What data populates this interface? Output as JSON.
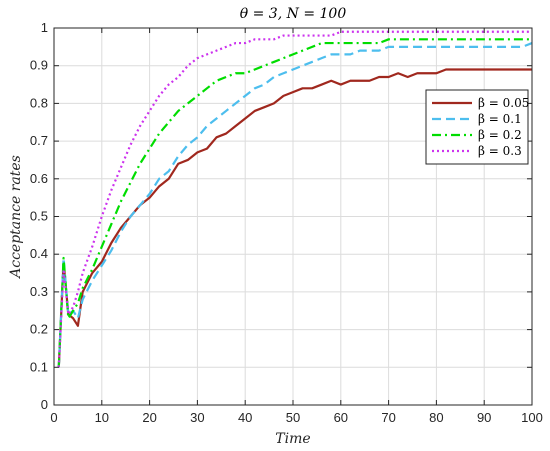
{
  "chart_data": {
    "type": "line",
    "title": "θ = 3, N = 100",
    "xlabel": "Time",
    "ylabel": "Acceptance rates",
    "xlim": [
      0,
      100
    ],
    "ylim": [
      0,
      1
    ],
    "xticks": [
      0,
      10,
      20,
      30,
      40,
      50,
      60,
      70,
      80,
      90,
      100
    ],
    "yticks": [
      0,
      0.1,
      0.2,
      0.3,
      0.4,
      0.5,
      0.6,
      0.7,
      0.8,
      0.9,
      1
    ],
    "grid": true,
    "legend_position": "top-right",
    "series": [
      {
        "name": "β = 0.05",
        "color": "#a0281e",
        "style": "solid",
        "x": [
          1,
          2,
          3,
          4,
          5,
          6,
          8,
          10,
          12,
          14,
          16,
          18,
          20,
          22,
          24,
          26,
          28,
          30,
          32,
          34,
          36,
          38,
          40,
          42,
          44,
          46,
          48,
          50,
          52,
          54,
          56,
          58,
          60,
          62,
          64,
          66,
          68,
          70,
          72,
          74,
          76,
          78,
          80,
          82,
          84,
          86,
          88,
          90,
          92,
          94,
          96,
          98,
          100
        ],
        "y": [
          0.1,
          0.38,
          0.24,
          0.23,
          0.21,
          0.3,
          0.35,
          0.38,
          0.43,
          0.47,
          0.5,
          0.53,
          0.55,
          0.58,
          0.6,
          0.64,
          0.65,
          0.67,
          0.68,
          0.71,
          0.72,
          0.74,
          0.76,
          0.78,
          0.79,
          0.8,
          0.82,
          0.83,
          0.84,
          0.84,
          0.85,
          0.86,
          0.85,
          0.86,
          0.86,
          0.86,
          0.87,
          0.87,
          0.88,
          0.87,
          0.88,
          0.88,
          0.88,
          0.89,
          0.89,
          0.89,
          0.89,
          0.89,
          0.89,
          0.89,
          0.89,
          0.89,
          0.89
        ]
      },
      {
        "name": "β = 0.1",
        "color": "#4dbeee",
        "style": "dashed",
        "x": [
          1,
          2,
          3,
          4,
          5,
          6,
          8,
          10,
          12,
          14,
          16,
          18,
          20,
          22,
          24,
          26,
          28,
          30,
          32,
          34,
          36,
          38,
          40,
          42,
          44,
          46,
          48,
          50,
          52,
          54,
          56,
          58,
          60,
          62,
          64,
          66,
          68,
          70,
          72,
          74,
          76,
          78,
          80,
          82,
          84,
          86,
          88,
          90,
          92,
          94,
          96,
          98,
          100
        ],
        "y": [
          0.1,
          0.39,
          0.24,
          0.25,
          0.23,
          0.28,
          0.33,
          0.37,
          0.41,
          0.46,
          0.5,
          0.53,
          0.56,
          0.6,
          0.62,
          0.66,
          0.69,
          0.71,
          0.74,
          0.76,
          0.78,
          0.8,
          0.82,
          0.84,
          0.85,
          0.87,
          0.88,
          0.89,
          0.9,
          0.91,
          0.92,
          0.93,
          0.93,
          0.93,
          0.94,
          0.94,
          0.94,
          0.95,
          0.95,
          0.95,
          0.95,
          0.95,
          0.95,
          0.95,
          0.95,
          0.95,
          0.95,
          0.95,
          0.95,
          0.95,
          0.95,
          0.95,
          0.96
        ]
      },
      {
        "name": "β = 0.2",
        "color": "#00dd00",
        "style": "dashdot",
        "x": [
          1,
          2,
          3,
          4,
          5,
          6,
          8,
          10,
          12,
          14,
          16,
          18,
          20,
          22,
          24,
          26,
          28,
          30,
          32,
          34,
          36,
          38,
          40,
          42,
          44,
          46,
          48,
          50,
          52,
          54,
          56,
          58,
          60,
          62,
          64,
          66,
          68,
          70,
          72,
          74,
          76,
          78,
          80,
          82,
          84,
          86,
          88,
          90,
          92,
          94,
          96,
          98,
          100
        ],
        "y": [
          0.1,
          0.39,
          0.23,
          0.25,
          0.27,
          0.31,
          0.36,
          0.42,
          0.48,
          0.54,
          0.59,
          0.64,
          0.68,
          0.72,
          0.75,
          0.78,
          0.8,
          0.82,
          0.84,
          0.86,
          0.87,
          0.88,
          0.88,
          0.89,
          0.9,
          0.91,
          0.92,
          0.93,
          0.94,
          0.95,
          0.96,
          0.96,
          0.96,
          0.96,
          0.96,
          0.96,
          0.96,
          0.97,
          0.97,
          0.97,
          0.97,
          0.97,
          0.97,
          0.97,
          0.97,
          0.97,
          0.97,
          0.97,
          0.97,
          0.97,
          0.97,
          0.97,
          0.97
        ]
      },
      {
        "name": "β = 0.3",
        "color": "#cc33ee",
        "style": "dotted",
        "x": [
          1,
          2,
          3,
          4,
          5,
          6,
          8,
          10,
          12,
          14,
          16,
          18,
          20,
          22,
          24,
          26,
          28,
          30,
          32,
          34,
          36,
          38,
          40,
          42,
          44,
          46,
          48,
          50,
          52,
          54,
          56,
          58,
          60,
          62,
          64,
          66,
          68,
          70,
          72,
          74,
          76,
          78,
          80,
          82,
          84,
          86,
          88,
          90,
          92,
          94,
          96,
          98,
          100
        ],
        "y": [
          0.1,
          0.36,
          0.24,
          0.26,
          0.3,
          0.35,
          0.42,
          0.5,
          0.57,
          0.63,
          0.69,
          0.74,
          0.78,
          0.82,
          0.85,
          0.87,
          0.9,
          0.92,
          0.93,
          0.94,
          0.95,
          0.96,
          0.96,
          0.97,
          0.97,
          0.97,
          0.98,
          0.98,
          0.98,
          0.98,
          0.98,
          0.98,
          0.99,
          0.99,
          0.99,
          0.99,
          0.99,
          0.99,
          0.99,
          0.99,
          0.99,
          0.99,
          0.99,
          0.99,
          0.99,
          0.99,
          0.99,
          0.99,
          0.99,
          0.99,
          0.99,
          0.99,
          0.99
        ]
      }
    ]
  }
}
